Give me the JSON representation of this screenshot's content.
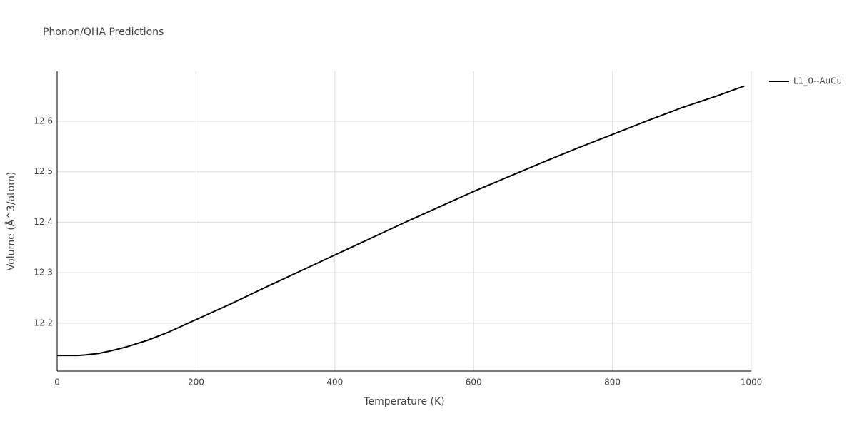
{
  "chart_data": {
    "type": "line",
    "title": "Phonon/QHA Predictions",
    "x_label": "Temperature (K)",
    "y_label": "Volume (Å^3/atom)",
    "x": [
      0,
      30,
      40,
      60,
      80,
      100,
      130,
      160,
      200,
      250,
      300,
      350,
      400,
      450,
      500,
      550,
      600,
      650,
      700,
      750,
      800,
      850,
      900,
      950,
      990
    ],
    "series": [
      {
        "name": "L1_0--AuCu",
        "color": "#000000",
        "values": [
          12.136,
          12.136,
          12.137,
          12.14,
          12.146,
          12.153,
          12.166,
          12.182,
          12.207,
          12.238,
          12.271,
          12.303,
          12.335,
          12.367,
          12.399,
          12.43,
          12.461,
          12.49,
          12.519,
          12.547,
          12.574,
          12.601,
          12.627,
          12.65,
          12.67
        ]
      }
    ],
    "xlim": [
      0,
      1000
    ],
    "xticks": [
      0,
      200,
      400,
      600,
      800,
      1000
    ],
    "ylim": [
      12.105,
      12.699
    ],
    "yticks": [
      12.2,
      12.3,
      12.4,
      12.5,
      12.6
    ],
    "grid": true,
    "legend": "right"
  }
}
